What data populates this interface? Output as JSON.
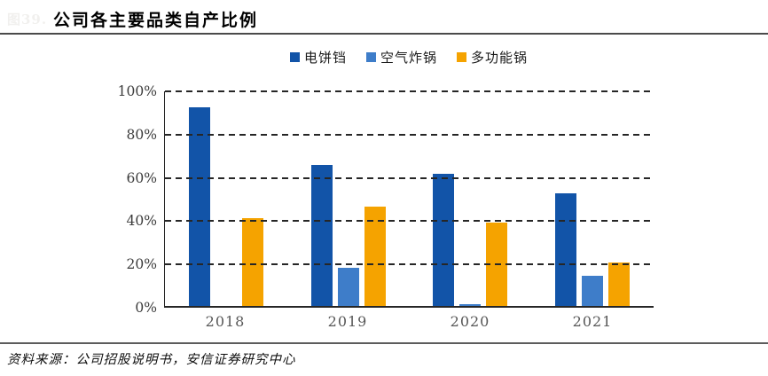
{
  "figure_number": "图39.",
  "header": {
    "title": "公司各主要品类自产比例"
  },
  "legend": [
    {
      "label": "电饼铛",
      "color": "#1254A8"
    },
    {
      "label": "空气炸锅",
      "color": "#3E7DC9"
    },
    {
      "label": "多功能锅",
      "color": "#F5A300"
    }
  ],
  "chart_data": {
    "type": "bar",
    "title": "公司各主要品类自产比例",
    "categories": [
      "2018",
      "2019",
      "2020",
      "2021"
    ],
    "series": [
      {
        "name": "电饼铛",
        "color": "#1254A8",
        "values": [
          92,
          65,
          61,
          52
        ]
      },
      {
        "name": "空气炸锅",
        "color": "#3E7DC9",
        "values": [
          0,
          17.5,
          1,
          14
        ]
      },
      {
        "name": "多功能锅",
        "color": "#F5A300",
        "values": [
          40.5,
          46,
          38.5,
          20
        ]
      }
    ],
    "xlabel": "",
    "ylabel": "",
    "ylim": [
      0,
      100
    ],
    "yticks": [
      "0%",
      "20%",
      "40%",
      "60%",
      "80%",
      "100%"
    ],
    "grid": "horizontal-dashed",
    "legend_position": "top-center",
    "axis_color": "#262626"
  },
  "footer": {
    "source": "资料来源：公司招股说明书，安信证券研究中心"
  }
}
